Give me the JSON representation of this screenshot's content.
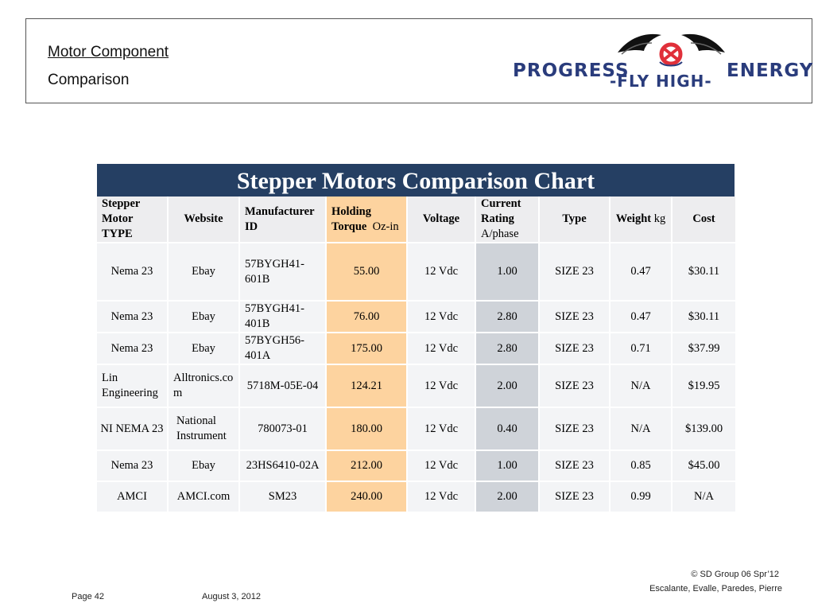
{
  "header": {
    "title": "Motor Component",
    "subtitle": "Comparison",
    "logo_text_left": "PROGRESS",
    "logo_text_middle": "-FLY HIGH-",
    "logo_text_right": "ENERGY"
  },
  "chart": {
    "title": "Stepper Motors Comparison Chart"
  },
  "table": {
    "headers": {
      "type": "Stepper Motor TYPE",
      "website": "Website",
      "manufacturer": "Manufacturer ID",
      "torque": "Holding Torque",
      "torque_unit": "Oz-in",
      "voltage": "Voltage",
      "current": "Current Rating",
      "current_unit": "A/phase",
      "motor_type": "Type",
      "weight": "Weight",
      "weight_unit": "kg",
      "cost": "Cost"
    },
    "rows": [
      {
        "type": "Nema 23",
        "website": "Ebay",
        "manufacturer": "57BYGH41-601B",
        "torque": "55.00",
        "voltage": "12 Vdc",
        "current": "1.00",
        "motor_type": "SIZE 23",
        "weight": "0.47",
        "cost": "$30.11"
      },
      {
        "type": "Nema 23",
        "website": "Ebay",
        "manufacturer": "57BYGH41-401B",
        "torque": "76.00",
        "voltage": "12 Vdc",
        "current": "2.80",
        "motor_type": "SIZE 23",
        "weight": "0.47",
        "cost": "$30.11"
      },
      {
        "type": "Nema 23",
        "website": "Ebay",
        "manufacturer": "57BYGH56-401A",
        "torque": "175.00",
        "voltage": "12 Vdc",
        "current": "2.80",
        "motor_type": "SIZE 23",
        "weight": "0.71",
        "cost": "$37.99"
      },
      {
        "type": "Lin Engineering",
        "website": "Alltronics.com",
        "manufacturer": "5718M-05E-04",
        "torque": "124.21",
        "voltage": "12 Vdc",
        "current": "2.00",
        "motor_type": "SIZE 23",
        "weight": "N/A",
        "cost": "$19.95"
      },
      {
        "type": "NI NEMA 23",
        "website": "National Instrument",
        "manufacturer": "780073-01",
        "torque": "180.00",
        "voltage": "12 Vdc",
        "current": "0.40",
        "motor_type": "SIZE 23",
        "weight": "N/A",
        "cost": "$139.00"
      },
      {
        "type": "Nema 23",
        "website": "Ebay",
        "manufacturer": "23HS6410-02A",
        "torque": "212.00",
        "voltage": "12 Vdc",
        "current": "1.00",
        "motor_type": "SIZE 23",
        "weight": "0.85",
        "cost": "$45.00"
      },
      {
        "type": "AMCI",
        "website": "AMCI.com",
        "manufacturer": "SM23",
        "torque": "240.00",
        "voltage": "12 Vdc",
        "current": "2.00",
        "motor_type": "SIZE 23",
        "weight": "0.99",
        "cost": "N/A"
      }
    ]
  },
  "footer": {
    "page": "Page 42",
    "date": "August 3, 2012",
    "copyright": "© SD Group 06 Spr’12",
    "authors": "Escalante, Evalle, Paredes, Pierre"
  },
  "colors": {
    "title_bar": "#253f63",
    "torque_column": "#fdd39f",
    "current_column": "#cfd3d9",
    "cell": "#f3f4f6"
  }
}
